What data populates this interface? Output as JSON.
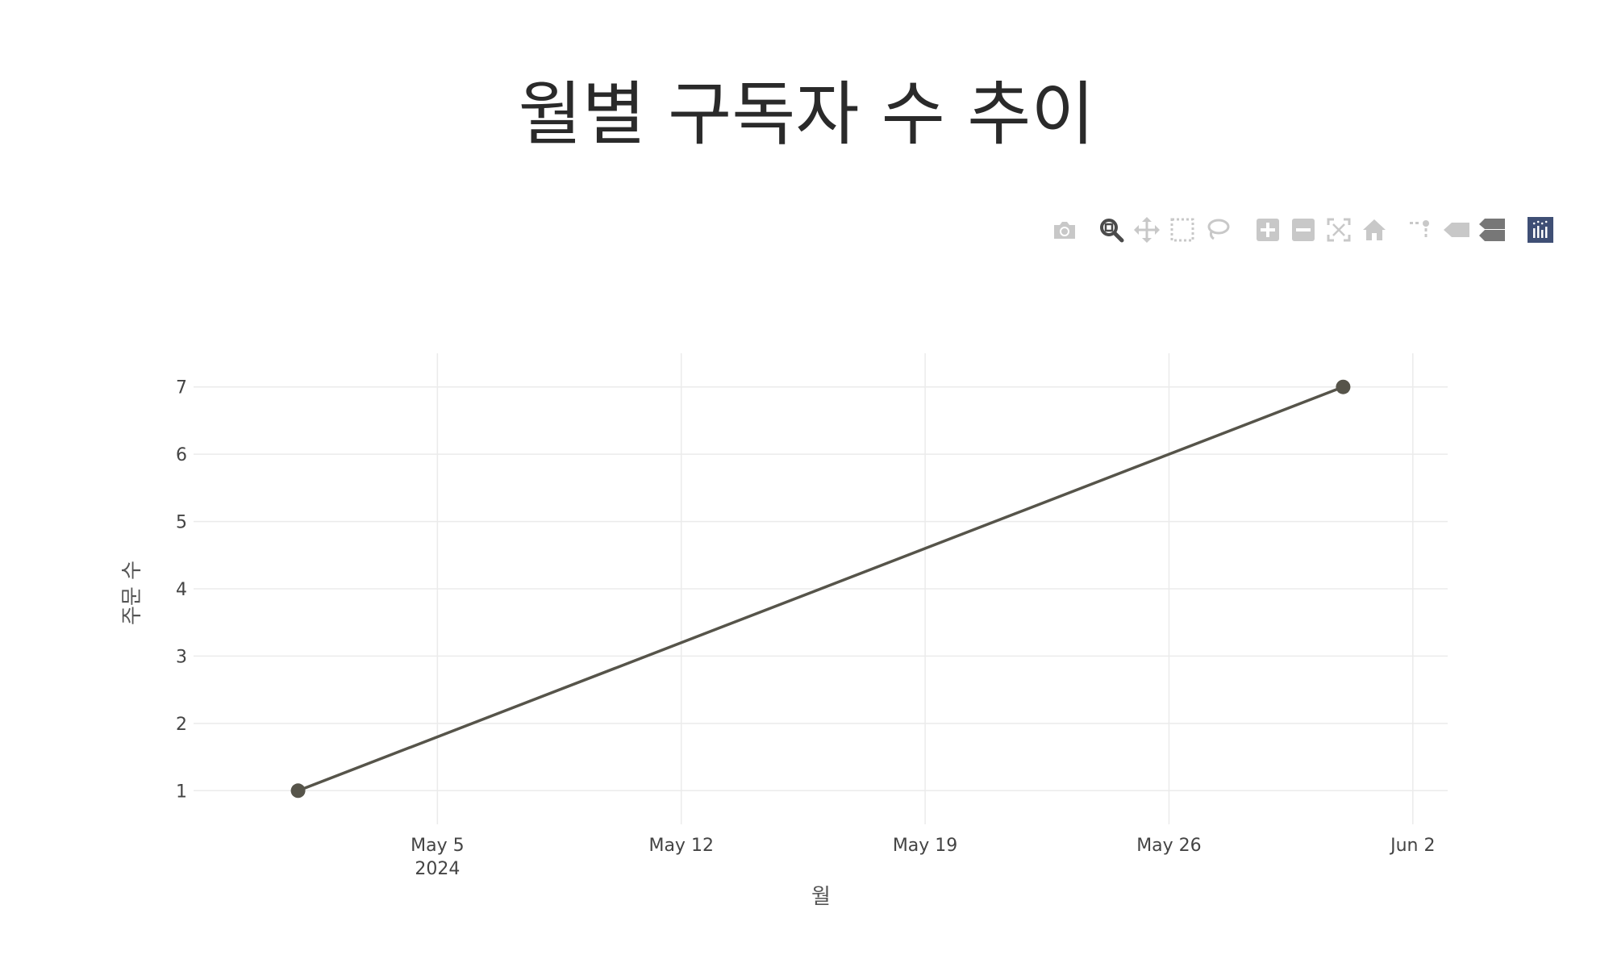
{
  "chart_data": {
    "type": "line",
    "title": "월별 구독자 수 추이",
    "xlabel": "월",
    "ylabel": "주문 수",
    "x": [
      "2024-05-01",
      "2024-05-31"
    ],
    "y": [
      1,
      7
    ],
    "series": [
      {
        "values": [
          1,
          7
        ],
        "color": "#56544a"
      }
    ],
    "xlim": [
      "2024-04-28",
      "2024-06-03"
    ],
    "ylim": [
      0.5,
      7.5
    ],
    "x_ticks": [
      {
        "date": "2024-05-05",
        "label": "May 5",
        "sublabel": "2024"
      },
      {
        "date": "2024-05-12",
        "label": "May 12"
      },
      {
        "date": "2024-05-19",
        "label": "May 19"
      },
      {
        "date": "2024-05-26",
        "label": "May 26"
      },
      {
        "date": "2024-06-02",
        "label": "Jun 2"
      }
    ],
    "y_ticks": [
      "1",
      "2",
      "3",
      "4",
      "5",
      "6",
      "7"
    ],
    "grid": true,
    "markers": true
  },
  "modebar": {
    "buttons": [
      "camera-icon",
      "zoom-icon",
      "pan-icon",
      "box-select-icon",
      "lasso-select-icon",
      "zoom-in-icon",
      "zoom-out-icon",
      "autoscale-icon",
      "reset-axes-icon",
      "spike-lines-icon",
      "hover-closest-icon",
      "hover-compare-icon",
      "plotly-logo-icon"
    ],
    "active_color": "#4a4a4a",
    "inactive_color": "#c8c8c8",
    "logo_color": "#3f4f75"
  }
}
